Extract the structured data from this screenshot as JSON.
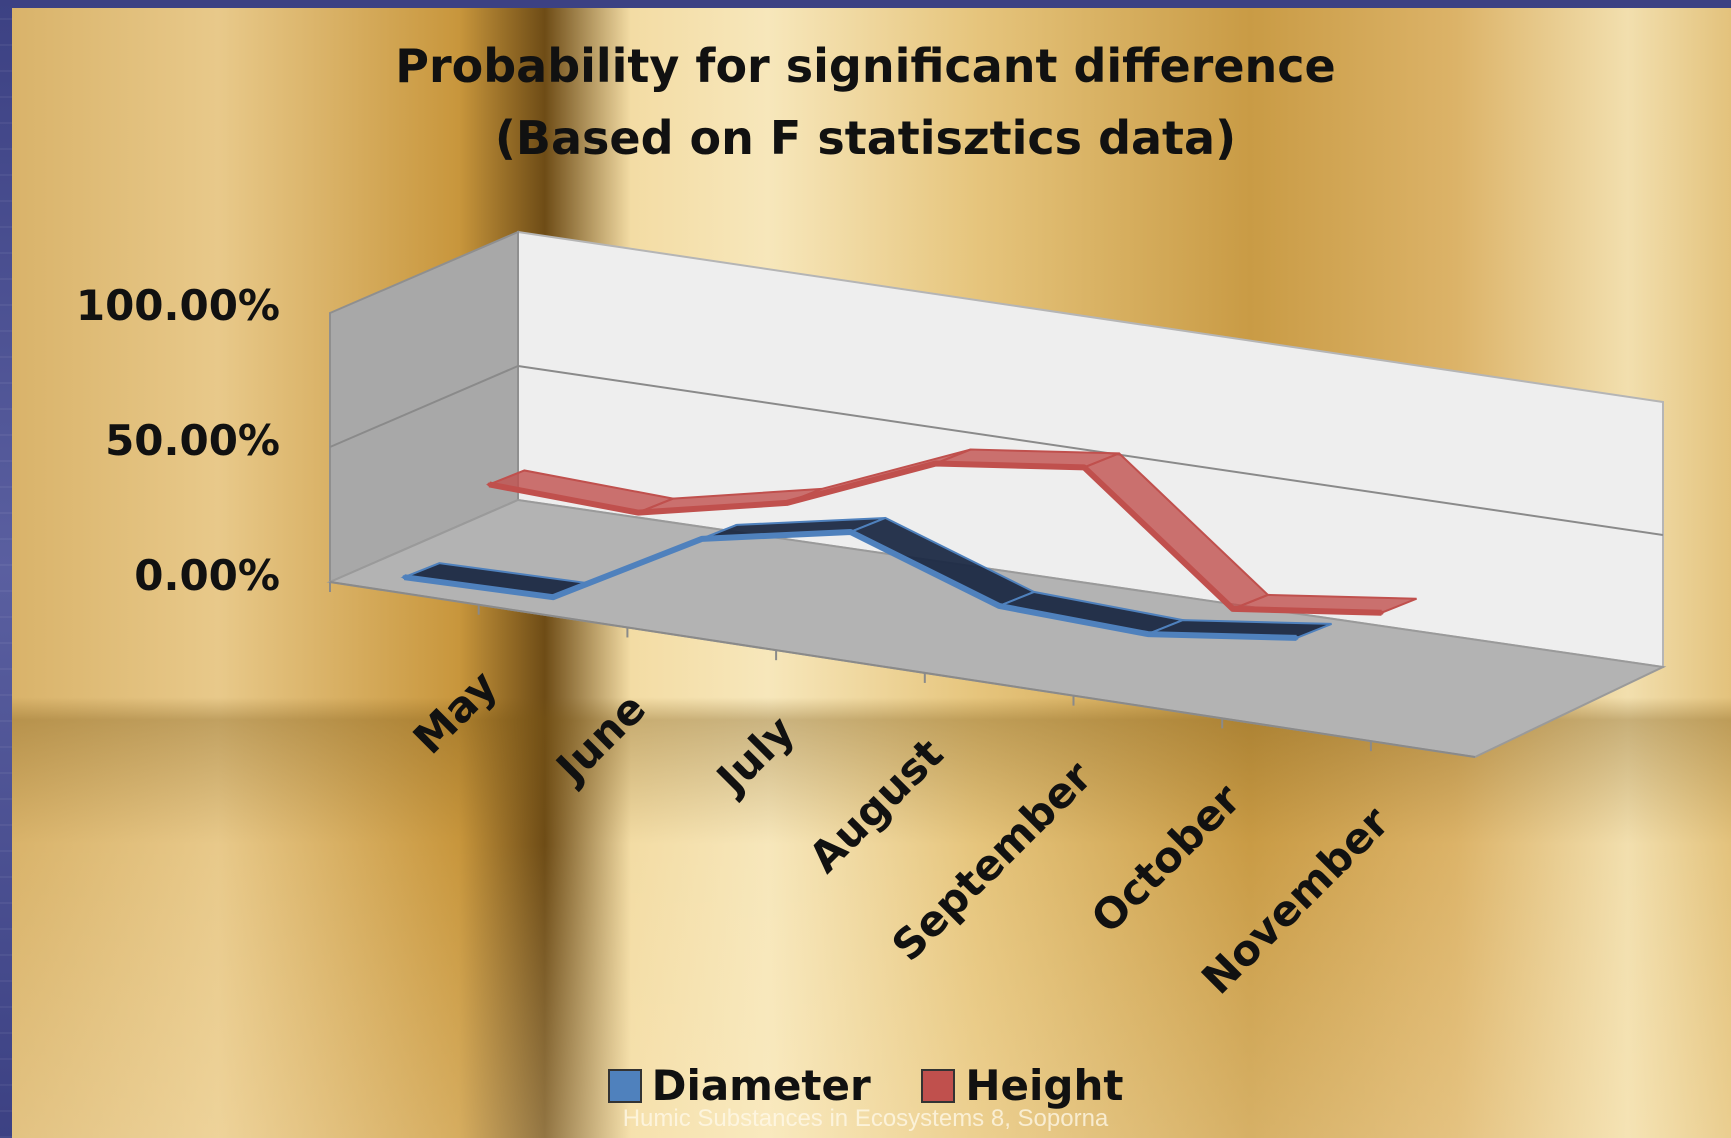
{
  "slide": {
    "footer": "Humic Substances in Ecosystems 8, Soporna"
  },
  "chart_data": {
    "type": "line",
    "title_lines": [
      "Probability for significant difference",
      "(Based on F statisztics data)"
    ],
    "categories": [
      "May",
      "June",
      "July",
      "August",
      "September",
      "October",
      "November"
    ],
    "y_ticks": [
      "100.00%",
      "50.00%",
      "0.00%"
    ],
    "ylim": [
      0,
      100
    ],
    "grid": true,
    "legend_position": "bottom",
    "series": [
      {
        "name": "Diameter",
        "color": "#4f81bd",
        "values": [
          6,
          7,
          37,
          48,
          29,
          27,
          34
        ]
      },
      {
        "name": "Height",
        "color": "#c0504d",
        "values": [
          27,
          25,
          37,
          60,
          67,
          23,
          30
        ]
      }
    ]
  }
}
